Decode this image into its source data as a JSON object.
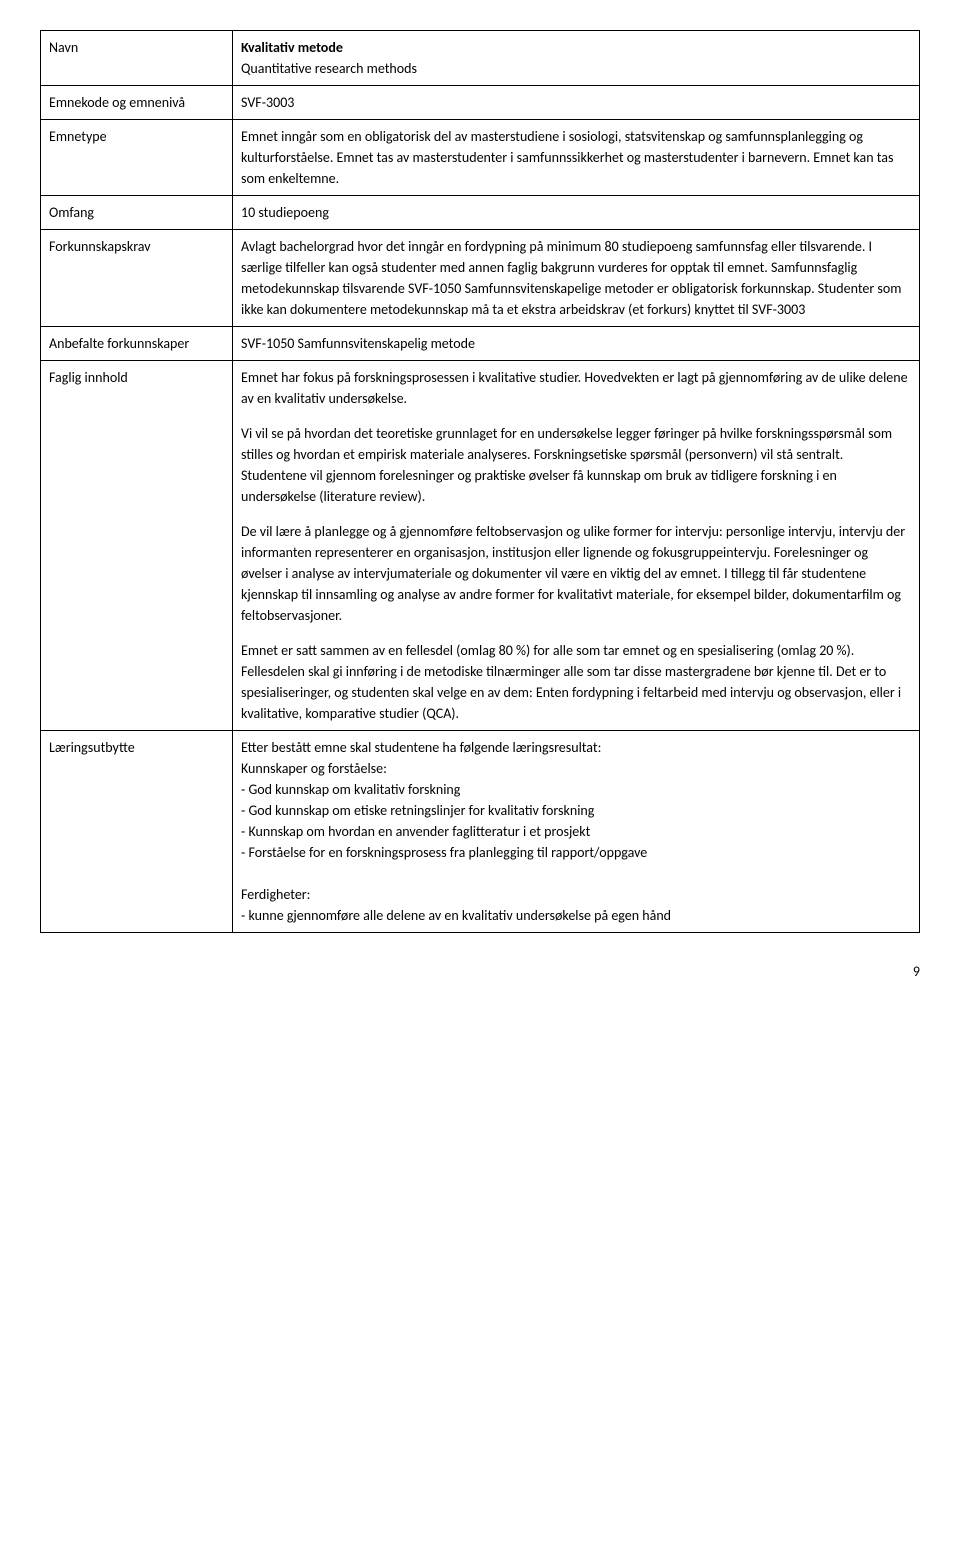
{
  "rows": {
    "navn": {
      "label": "Navn",
      "title": "Kvalitativ metode",
      "subtitle": "Quantitative research methods"
    },
    "emnekode": {
      "label": "Emnekode og emnenivå",
      "value": "SVF-3003"
    },
    "emnetype": {
      "label": "Emnetype",
      "value": "Emnet inngår som en obligatorisk del av masterstudiene i sosiologi, statsvitenskap og samfunnsplanlegging og kulturforståelse. Emnet tas av masterstudenter i samfunnssikkerhet og masterstudenter i barnevern. Emnet kan tas som enkeltemne."
    },
    "omfang": {
      "label": "Omfang",
      "value": "10 studiepoeng"
    },
    "forkunnskapskrav": {
      "label": "Forkunnskapskrav",
      "value": "Avlagt bachelorgrad hvor det inngår en fordypning på minimum 80 studiepoeng samfunnsfag eller tilsvarende. I særlige tilfeller kan også studenter med annen faglig bakgrunn vurderes for opptak til emnet. Samfunnsfaglig metodekunnskap tilsvarende SVF-1050 Samfunnsvitenskapelige metoder er obligatorisk forkunnskap. Studenter som ikke kan dokumentere metodekunnskap må ta et ekstra arbeidskrav (et forkurs) knyttet til SVF-3003"
    },
    "anbefalte": {
      "label": "Anbefalte forkunnskaper",
      "value": "SVF-1050 Samfunnsvitenskapelig metode"
    },
    "faglig": {
      "label": "Faglig innhold",
      "p1": "Emnet har fokus på forskningsprosessen i kvalitative studier. Hovedvekten er lagt på gjennomføring av de ulike delene av en kvalitativ undersøkelse.",
      "p2": "Vi vil se på hvordan det teoretiske grunnlaget for en undersøkelse legger føringer på hvilke forskningsspørsmål som stilles og hvordan et empirisk materiale analyseres. Forskningsetiske spørsmål (personvern) vil stå sentralt. Studentene vil gjennom forelesninger og praktiske øvelser få kunnskap om bruk av tidligere forskning i en undersøkelse (literature review).",
      "p3": "De vil lære å planlegge og å gjennomføre feltobservasjon og ulike former for intervju: personlige intervju, intervju der informanten representerer en organisasjon, institusjon eller lignende og fokusgruppeintervju. Forelesninger og øvelser i analyse av intervjumateriale og dokumenter vil være en viktig del av emnet. I tillegg til får studentene kjennskap til innsamling og analyse av andre former for kvalitativt materiale, for eksempel bilder, dokumentarfilm og feltobservasjoner.",
      "p4": "Emnet er satt sammen av en fellesdel (omlag 80 %) for alle som tar emnet og en spesialisering (omlag 20 %). Fellesdelen skal gi innføring i de metodiske tilnærminger alle som tar disse mastergradene bør kjenne til. Det er to spesialiseringer, og studenten skal velge en av dem: Enten fordypning i feltarbeid med intervju og observasjon, eller i kvalitative, komparative studier (QCA)."
    },
    "laering": {
      "label": "Læringsutbytte",
      "intro": "Etter bestått emne skal studentene ha følgende læringsresultat:",
      "kunnskaper_header": "Kunnskaper og forståelse:",
      "k1": "- God kunnskap om kvalitativ forskning",
      "k2": "- God kunnskap om etiske retningslinjer for kvalitativ forskning",
      "k3": "- Kunnskap om hvordan en anvender faglitteratur i et prosjekt",
      "k4": "- Forståelse for en forskningsprosess fra planlegging til rapport/oppgave",
      "ferdigheter_header": "Ferdigheter:",
      "f1": "- kunne gjennomføre alle delene av en kvalitativ undersøkelse på egen hånd"
    }
  },
  "page_number": "9"
}
